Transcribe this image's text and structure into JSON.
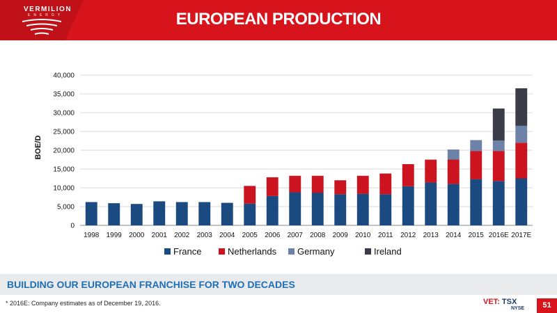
{
  "header": {
    "title": "EUROPEAN PRODUCTION",
    "logo_name": "VERMILION",
    "logo_sub": "ENERGY"
  },
  "chart_data": {
    "type": "bar",
    "stacked": true,
    "categories": [
      "1998",
      "1999",
      "2000",
      "2001",
      "2002",
      "2003",
      "2004",
      "2005",
      "2006",
      "2007",
      "2008",
      "2009",
      "2010",
      "2011",
      "2012",
      "2013",
      "2014",
      "2015",
      "2016E",
      "2017E"
    ],
    "series": [
      {
        "name": "France",
        "color": "#1a4a80",
        "values": [
          6200,
          5900,
          5700,
          6400,
          6200,
          6200,
          6000,
          5800,
          7800,
          8800,
          8700,
          8300,
          8400,
          8300,
          10400,
          11400,
          11000,
          12300,
          11800,
          12500
        ]
      },
      {
        "name": "Netherlands",
        "color": "#cc1420",
        "values": [
          0,
          0,
          0,
          0,
          0,
          0,
          0,
          4700,
          5000,
          4400,
          4500,
          3700,
          4800,
          5500,
          5900,
          6100,
          6500,
          7500,
          8000,
          9500
        ]
      },
      {
        "name": "Germany",
        "color": "#6c82a6",
        "values": [
          0,
          0,
          0,
          0,
          0,
          0,
          0,
          0,
          0,
          0,
          0,
          0,
          0,
          0,
          0,
          0,
          2700,
          2900,
          2800,
          4500
        ]
      },
      {
        "name": "Ireland",
        "color": "#3a3d48",
        "values": [
          0,
          0,
          0,
          0,
          0,
          0,
          0,
          0,
          0,
          0,
          0,
          0,
          0,
          0,
          0,
          0,
          0,
          0,
          8500,
          10000
        ]
      }
    ],
    "ylabel": "BOE/D",
    "ylim": [
      0,
      40000
    ],
    "yticks": [
      "0",
      "5,000",
      "10,000",
      "15,000",
      "20,000",
      "25,000",
      "30,000",
      "35,000",
      "40,000"
    ],
    "legend_position": "bottom",
    "grid": true
  },
  "banner": {
    "text": "BUILDING OUR EUROPEAN FRANCHISE FOR TWO DECADES"
  },
  "footnote": "* 2016E: Company estimates as of December 19, 2016.",
  "ticker": {
    "prefix": "VET:",
    "exchange1": "TSX",
    "exchange2": "NYSE"
  },
  "page_number": "51"
}
